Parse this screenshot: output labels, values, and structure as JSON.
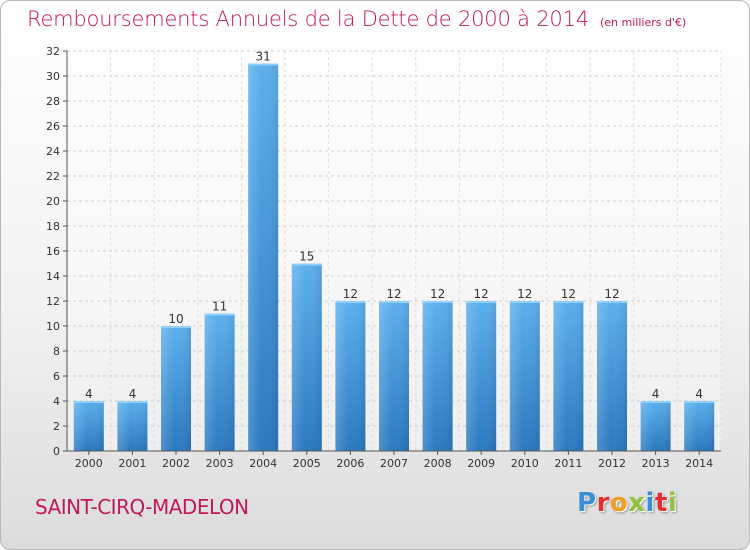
{
  "title": {
    "main": "Remboursements Annuels de la Dette de 2000 à 2014",
    "unit": "(en milliers d'€)"
  },
  "town": "SAINT-CIRQ-MADELON",
  "logo": {
    "letters": [
      "P",
      "r",
      "o",
      "x",
      "i",
      "t",
      "i"
    ],
    "colors": [
      "#3a8fd6",
      "#e03030",
      "#f0a020",
      "#8fc43a",
      "#3a8fd6",
      "#e03030",
      "#8fc43a"
    ]
  },
  "colors": {
    "accent": "#c2185b",
    "bar_top": "#5cb0ee",
    "bar_bottom": "#2a78bf"
  },
  "chart_data": {
    "type": "bar",
    "categories": [
      "2000",
      "2001",
      "2002",
      "2003",
      "2004",
      "2005",
      "2006",
      "2007",
      "2008",
      "2009",
      "2010",
      "2011",
      "2012",
      "2013",
      "2014"
    ],
    "values": [
      4,
      4,
      10,
      11,
      31,
      15,
      12,
      12,
      12,
      12,
      12,
      12,
      12,
      4,
      4
    ],
    "ylim": [
      0,
      32
    ],
    "yticks": [
      0,
      2,
      4,
      6,
      8,
      10,
      12,
      14,
      16,
      18,
      20,
      22,
      24,
      26,
      28,
      30,
      32
    ],
    "grid": true,
    "data_labels": true
  }
}
